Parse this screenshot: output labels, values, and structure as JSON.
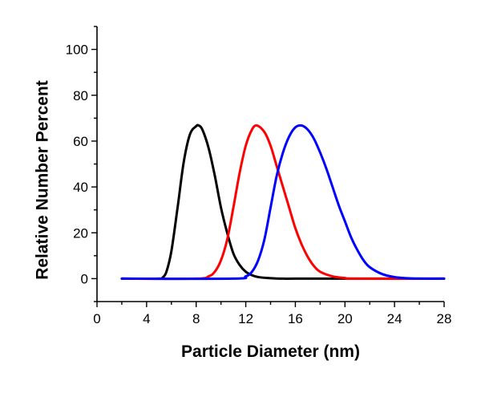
{
  "chart_data": {
    "type": "line",
    "xlabel": "Particle Diameter (nm)",
    "ylabel": "Relative Number Percent",
    "xlim": [
      0,
      28
    ],
    "ylim": [
      -10,
      110
    ],
    "x_ticks": [
      0,
      4,
      8,
      12,
      16,
      20,
      24,
      28
    ],
    "y_ticks": [
      0,
      20,
      40,
      60,
      80,
      100
    ],
    "grid": false,
    "legend": "none",
    "series": [
      {
        "color": "#000000",
        "x": [
          2.0,
          5.0,
          5.3,
          5.6,
          6.0,
          6.5,
          7.0,
          7.5,
          8.0,
          8.2,
          8.5,
          9.0,
          9.5,
          10.0,
          10.5,
          11.0,
          11.5,
          12.0,
          12.5,
          13.0,
          14.0,
          15.0,
          16.0,
          20.0,
          28.0
        ],
        "y": [
          0,
          0,
          0.5,
          3,
          12,
          31,
          51,
          63,
          66.5,
          66.8,
          65,
          57,
          45,
          31,
          20,
          11,
          6,
          3,
          1.5,
          0.7,
          0.2,
          0,
          0,
          0,
          0
        ]
      },
      {
        "color": "#ff0000",
        "x": [
          2.0,
          8.0,
          9.0,
          9.5,
          10.0,
          10.5,
          11.0,
          11.5,
          12.0,
          12.5,
          12.9,
          13.5,
          14.0,
          14.5,
          15.0,
          15.5,
          16.0,
          16.5,
          17.0,
          17.5,
          18.0,
          19.0,
          20.0,
          21.0,
          28.0
        ],
        "y": [
          0,
          0,
          1,
          3,
          8,
          17,
          31,
          46,
          58,
          65,
          66.8,
          64,
          58,
          49,
          40,
          31,
          22,
          15,
          9.5,
          5.5,
          3,
          1,
          0.3,
          0,
          0
        ]
      },
      {
        "color": "#0000ff",
        "x": [
          2.0,
          11.0,
          12.0,
          12.5,
          13.0,
          13.5,
          14.0,
          14.5,
          15.0,
          15.5,
          16.0,
          16.5,
          17.0,
          17.5,
          18.0,
          18.5,
          19.0,
          19.5,
          20.0,
          20.5,
          21.0,
          21.5,
          22.0,
          23.0,
          24.0,
          25.0,
          26.0,
          28.0
        ],
        "y": [
          0,
          0,
          1,
          3,
          8,
          17,
          31,
          45,
          55,
          62,
          66,
          66.8,
          65,
          61,
          55,
          48,
          40,
          32,
          25,
          18,
          12.5,
          8,
          5,
          2,
          0.7,
          0.2,
          0,
          0
        ]
      }
    ]
  }
}
